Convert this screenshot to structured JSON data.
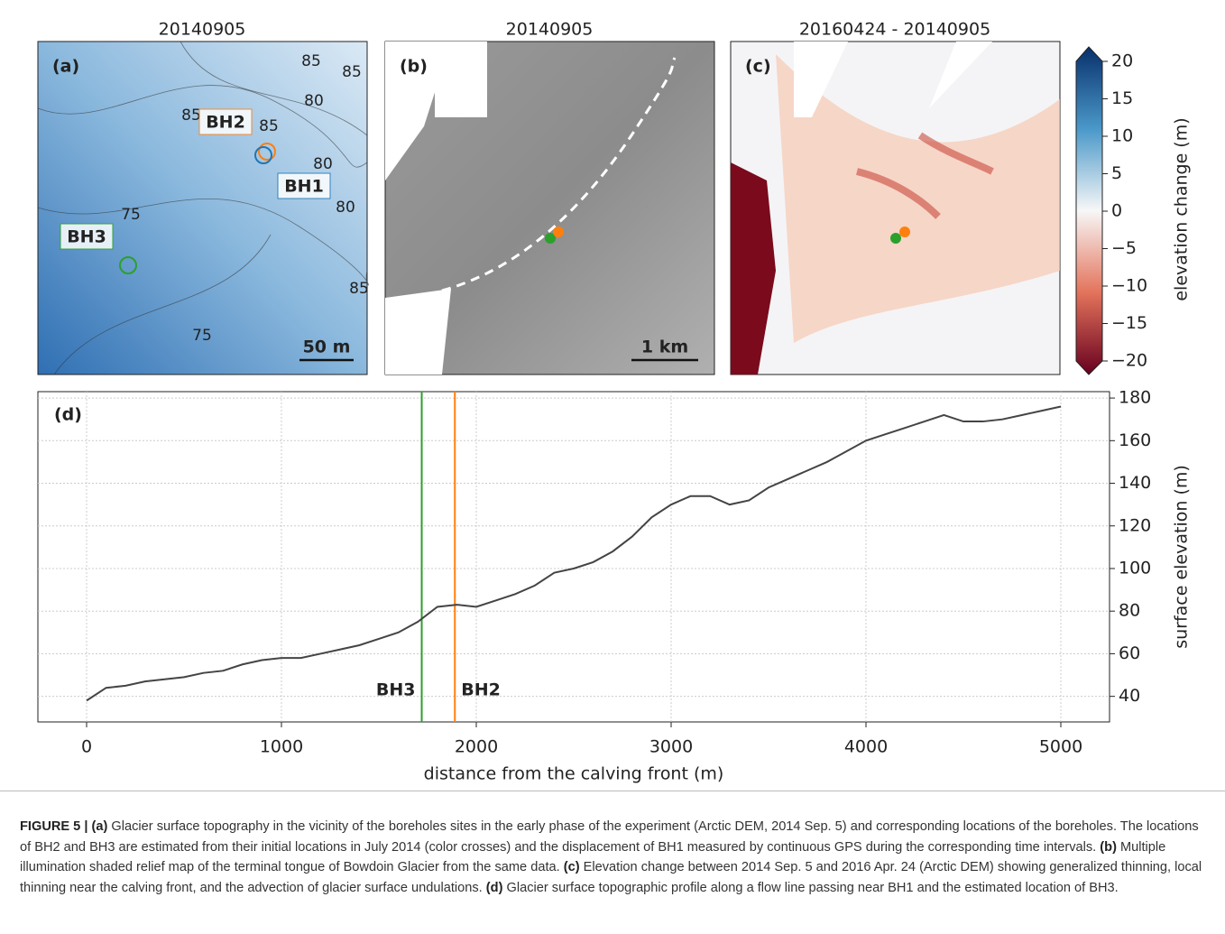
{
  "panels": [
    {
      "title": "20140905",
      "tag": "(a)",
      "scale_bar": "50 m",
      "contour_labels": [
        "85",
        "85",
        "85",
        "80",
        "85",
        "80",
        "75",
        "80",
        "85",
        "75"
      ],
      "boreholes": [
        {
          "name": "BH2",
          "color": "#ff7f0e"
        },
        {
          "name": "BH1",
          "color": "#1f77b4"
        },
        {
          "name": "BH3",
          "color": "#2ca02c"
        }
      ]
    },
    {
      "title": "20140905",
      "tag": "(b)",
      "scale_bar": "1 km"
    },
    {
      "title": "20160424 - 20140905",
      "tag": "(c)"
    }
  ],
  "colorbar": {
    "label": "elevation change (m)",
    "lim": [
      -20,
      20
    ],
    "ticks": [
      20,
      15,
      10,
      5,
      0,
      {
        "value": -5,
        "label": "−5"
      },
      {
        "value": -10,
        "label": "−10"
      },
      {
        "value": -15,
        "label": "−15"
      },
      {
        "value": -20,
        "label": "−20"
      }
    ]
  },
  "chart_data": {
    "type": "line",
    "tag": "(d)",
    "xlabel": "distance from the calving front (m)",
    "ylabel": "surface elevation (m)",
    "x": [
      0,
      100,
      200,
      300,
      400,
      500,
      600,
      700,
      800,
      900,
      1000,
      1100,
      1200,
      1300,
      1400,
      1500,
      1600,
      1700,
      1800,
      1900,
      2000,
      2100,
      2200,
      2300,
      2400,
      2500,
      2600,
      2700,
      2800,
      2900,
      3000,
      3100,
      3200,
      3300,
      3400,
      3500,
      3600,
      3700,
      3800,
      3900,
      4000,
      4100,
      4200,
      4300,
      4400,
      4500,
      4600,
      4700,
      4800,
      4900,
      5000
    ],
    "series": [
      {
        "color": "#444444",
        "values": [
          38,
          44,
          45,
          47,
          48,
          49,
          51,
          52,
          55,
          57,
          58,
          58,
          60,
          62,
          64,
          67,
          70,
          75,
          82,
          83,
          82,
          85,
          88,
          92,
          98,
          100,
          103,
          108,
          115,
          124,
          130,
          134,
          134,
          130,
          132,
          138,
          142,
          146,
          150,
          155,
          160,
          163,
          166,
          169,
          172,
          169,
          169,
          170,
          172,
          174,
          176
        ]
      }
    ],
    "markers": [
      {
        "name": "BH3",
        "x": 1720,
        "color": "#2ca02c"
      },
      {
        "name": "BH2",
        "x": 1890,
        "color": "#ff7f0e"
      }
    ],
    "xlim": [
      -250,
      5250
    ],
    "ylim": [
      28,
      183
    ],
    "xticks": [
      0,
      1000,
      2000,
      3000,
      4000,
      5000
    ],
    "yticks": [
      40,
      60,
      80,
      100,
      120,
      140,
      160,
      180
    ],
    "grid": true
  },
  "caption": {
    "lead": "FIGURE 5 |",
    "parts": [
      {
        "label": "(a)",
        "text": " Glacier surface topography in the vicinity of the boreholes sites in the early phase of the experiment (Arctic DEM, 2014 Sep. 5) and corresponding locations of the boreholes. The locations of BH2 and BH3 are estimated from their initial locations in July 2014 (color crosses) and the displacement of BH1 measured by continuous GPS during the corresponding time intervals. "
      },
      {
        "label": "(b)",
        "text": " Multiple illumination shaded relief map of the terminal tongue of Bowdoin Glacier from the same data. "
      },
      {
        "label": "(c)",
        "text": " Elevation change between 2014 Sep. 5 and 2016 Apr. 24 (Arctic DEM) showing generalized thinning, local thinning near the calving front, and the advection of glacier surface undulations. "
      },
      {
        "label": "(d)",
        "text": " Glacier surface topographic profile along a flow line passing near BH1 and the estimated location of BH3."
      }
    ]
  }
}
